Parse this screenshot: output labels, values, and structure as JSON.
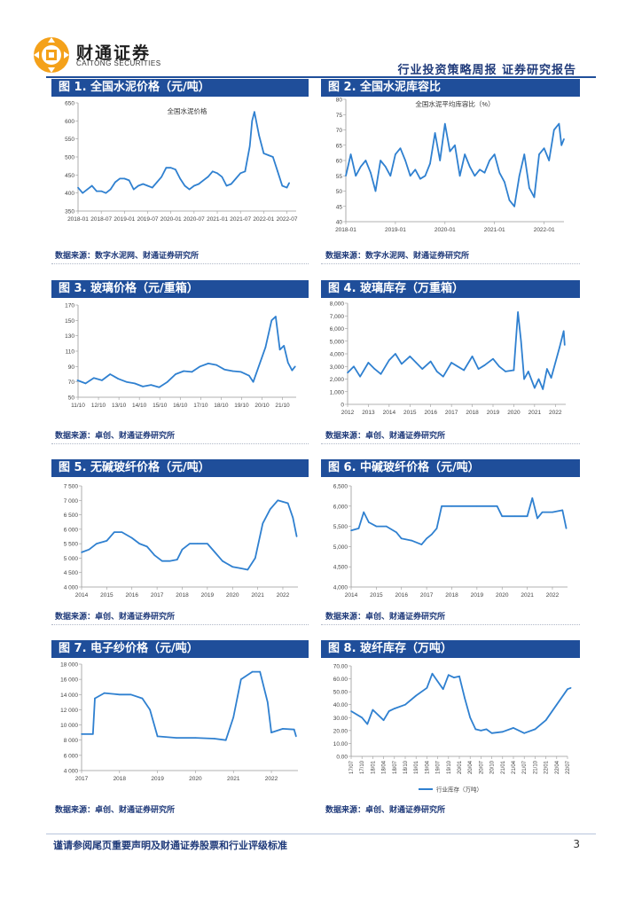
{
  "header": {
    "brand_cn": "财通证券",
    "brand_en": "CAITONG SECURITIES",
    "report_type": "行业投资策略周报   证券研究报告"
  },
  "colors": {
    "accent": "#1f4e9a",
    "line": "#2f80d0"
  },
  "figures": [
    {
      "title": "图 1. 全国水泥价格（元/吨）",
      "source": "数据来源：数字水泥网、财通证券研究所"
    },
    {
      "title": "图 2. 全国水泥库容比",
      "source": "数据来源：数字水泥网、财通证券研究所"
    },
    {
      "title": "图 3. 玻璃价格（元/重箱）",
      "source": "数据来源：卓创、财通证券研究所"
    },
    {
      "title": "图 4. 玻璃库存（万重箱）",
      "source": "数据来源：卓创、财通证券研究所"
    },
    {
      "title": "图 5. 无碱玻纤价格（元/吨）",
      "source": "数据来源：卓创、财通证券研究所"
    },
    {
      "title": "图 6. 中碱玻纤价格（元/吨）",
      "source": "数据来源：卓创、财通证券研究所"
    },
    {
      "title": "图 7. 电子纱价格（元/吨）",
      "source": "数据来源：卓创、财通证券研究所"
    },
    {
      "title": "图 8. 玻纤库存（万吨）",
      "source": "数据来源：卓创、财通证券研究所"
    }
  ],
  "footer": {
    "disclaimer": "谨请参阅尾页重要声明及财通证券股票和行业评级标准",
    "page": "3"
  },
  "chart_data": [
    {
      "id": "c1",
      "type": "line",
      "title": "全国水泥价格",
      "ylim": [
        350,
        650
      ],
      "yticks": [
        "350",
        "400",
        "450",
        "500",
        "550",
        "600",
        "650"
      ],
      "xlim": [
        2018.0,
        2022.7
      ],
      "xticks": [
        {
          "v": 2018.0,
          "label": "2018-01"
        },
        {
          "v": 2018.5,
          "label": "2018-07"
        },
        {
          "v": 2019.0,
          "label": "2019-01"
        },
        {
          "v": 2019.5,
          "label": "2019-07"
        },
        {
          "v": 2020.0,
          "label": "2020-01"
        },
        {
          "v": 2020.5,
          "label": "2020-07"
        },
        {
          "v": 2021.0,
          "label": "2021-01"
        },
        {
          "v": 2021.5,
          "label": "2021-07"
        },
        {
          "v": 2022.0,
          "label": "2022-01"
        },
        {
          "v": 2022.5,
          "label": "2022-07"
        }
      ],
      "x": [
        2018.0,
        2018.1,
        2018.2,
        2018.3,
        2018.4,
        2018.5,
        2018.6,
        2018.7,
        2018.8,
        2018.9,
        2019.0,
        2019.1,
        2019.2,
        2019.3,
        2019.4,
        2019.5,
        2019.6,
        2019.7,
        2019.8,
        2019.9,
        2020.0,
        2020.1,
        2020.2,
        2020.3,
        2020.4,
        2020.5,
        2020.6,
        2020.7,
        2020.8,
        2020.9,
        2021.0,
        2021.1,
        2021.2,
        2021.3,
        2021.4,
        2021.5,
        2021.6,
        2021.7,
        2021.75,
        2021.8,
        2021.9,
        2022.0,
        2022.1,
        2022.2,
        2022.3,
        2022.4,
        2022.5,
        2022.55
      ],
      "y": [
        415,
        400,
        410,
        420,
        405,
        405,
        400,
        410,
        430,
        440,
        440,
        435,
        410,
        420,
        425,
        420,
        415,
        430,
        445,
        470,
        470,
        465,
        440,
        420,
        410,
        420,
        425,
        435,
        445,
        460,
        455,
        445,
        420,
        425,
        440,
        455,
        460,
        530,
        600,
        625,
        560,
        510,
        505,
        500,
        460,
        420,
        415,
        428
      ]
    },
    {
      "id": "c2",
      "type": "line",
      "title": "全国水泥平均库容比（%）",
      "ylim": [
        40,
        80
      ],
      "yticks": [
        "40",
        "45",
        "50",
        "55",
        "60",
        "65",
        "70",
        "75",
        "80"
      ],
      "xlim": [
        2018.0,
        2022.4
      ],
      "xticks": [
        {
          "v": 2018.0,
          "label": "2018-01"
        },
        {
          "v": 2019.0,
          "label": "2019-01"
        },
        {
          "v": 2020.0,
          "label": "2020-01"
        },
        {
          "v": 2021.0,
          "label": "2021-01"
        },
        {
          "v": 2022.0,
          "label": "2022-01"
        }
      ],
      "x": [
        2018.0,
        2018.1,
        2018.2,
        2018.3,
        2018.4,
        2018.5,
        2018.6,
        2018.7,
        2018.8,
        2018.9,
        2019.0,
        2019.1,
        2019.2,
        2019.3,
        2019.4,
        2019.5,
        2019.6,
        2019.7,
        2019.8,
        2019.9,
        2020.0,
        2020.1,
        2020.2,
        2020.3,
        2020.4,
        2020.5,
        2020.6,
        2020.7,
        2020.8,
        2020.9,
        2021.0,
        2021.1,
        2021.2,
        2021.3,
        2021.4,
        2021.5,
        2021.6,
        2021.7,
        2021.8,
        2021.9,
        2022.0,
        2022.1,
        2022.2,
        2022.3,
        2022.35,
        2022.4
      ],
      "y": [
        55,
        62,
        55,
        58,
        60,
        56,
        50,
        60,
        58,
        55,
        62,
        64,
        60,
        55,
        57,
        54,
        55,
        59,
        69,
        60,
        72,
        63,
        65,
        55,
        62,
        58,
        55,
        57,
        56,
        60,
        62,
        56,
        53,
        47,
        45,
        55,
        62,
        51,
        48,
        62,
        64,
        60,
        70,
        72,
        65,
        67
      ]
    },
    {
      "id": "c3",
      "type": "line",
      "title": "玻璃价格",
      "ylim": [
        50,
        170
      ],
      "yticks": [
        "50",
        "70",
        "90",
        "110",
        "130",
        "150",
        "170"
      ],
      "xlim": [
        2011.83,
        2022.5
      ],
      "xticks": [
        {
          "v": 2011.83,
          "label": "11/10"
        },
        {
          "v": 2012.83,
          "label": "12/10"
        },
        {
          "v": 2013.83,
          "label": "13/10"
        },
        {
          "v": 2014.83,
          "label": "14/10"
        },
        {
          "v": 2015.83,
          "label": "15/10"
        },
        {
          "v": 2016.83,
          "label": "16/10"
        },
        {
          "v": 2017.83,
          "label": "17/10"
        },
        {
          "v": 2018.83,
          "label": "18/10"
        },
        {
          "v": 2019.83,
          "label": "19/10"
        },
        {
          "v": 2020.83,
          "label": "20/10"
        },
        {
          "v": 2021.83,
          "label": "21/10"
        }
      ],
      "x": [
        2011.8,
        2012.2,
        2012.6,
        2013.0,
        2013.4,
        2013.8,
        2014.2,
        2014.6,
        2015.0,
        2015.4,
        2015.8,
        2016.2,
        2016.6,
        2017.0,
        2017.4,
        2017.8,
        2018.2,
        2018.6,
        2019.0,
        2019.4,
        2019.8,
        2020.2,
        2020.4,
        2020.8,
        2021.0,
        2021.3,
        2021.5,
        2021.7,
        2021.9,
        2022.1,
        2022.3,
        2022.45
      ],
      "y": [
        72,
        68,
        75,
        72,
        80,
        74,
        70,
        68,
        64,
        66,
        63,
        70,
        80,
        84,
        83,
        90,
        94,
        92,
        86,
        84,
        83,
        78,
        70,
        100,
        115,
        150,
        155,
        112,
        117,
        95,
        85,
        90
      ]
    },
    {
      "id": "c4",
      "type": "line",
      "title": "玻璃库存",
      "ylim": [
        0,
        8000
      ],
      "yticks": [
        "0",
        "1,000",
        "2,000",
        "3,000",
        "4,000",
        "5,000",
        "6,000",
        "7,000",
        "8,000"
      ],
      "xlim": [
        2012.0,
        2022.5
      ],
      "xticks": [
        {
          "v": 2012,
          "label": "2012"
        },
        {
          "v": 2013,
          "label": "2013"
        },
        {
          "v": 2014,
          "label": "2014"
        },
        {
          "v": 2015,
          "label": "2015"
        },
        {
          "v": 2016,
          "label": "2016"
        },
        {
          "v": 2017,
          "label": "2017"
        },
        {
          "v": 2018,
          "label": "2018"
        },
        {
          "v": 2019,
          "label": "2019"
        },
        {
          "v": 2020,
          "label": "2020"
        },
        {
          "v": 2021,
          "label": "2021"
        },
        {
          "v": 2022,
          "label": "2022"
        }
      ],
      "x": [
        2012.0,
        2012.3,
        2012.6,
        2013.0,
        2013.3,
        2013.6,
        2014.0,
        2014.3,
        2014.6,
        2015.0,
        2015.3,
        2015.6,
        2016.0,
        2016.3,
        2016.6,
        2017.0,
        2017.3,
        2017.6,
        2018.0,
        2018.3,
        2018.6,
        2019.0,
        2019.3,
        2019.6,
        2020.0,
        2020.2,
        2020.35,
        2020.5,
        2020.7,
        2021.0,
        2021.2,
        2021.4,
        2021.6,
        2021.8,
        2022.0,
        2022.2,
        2022.4,
        2022.45
      ],
      "y": [
        2500,
        3000,
        2200,
        3300,
        2800,
        2400,
        3500,
        4000,
        3200,
        3800,
        3300,
        2800,
        3400,
        2600,
        2200,
        3300,
        3000,
        2700,
        3800,
        2800,
        3100,
        3600,
        3000,
        2600,
        2700,
        7300,
        5000,
        2000,
        2600,
        1300,
        2000,
        1200,
        2800,
        2100,
        3300,
        4500,
        5800,
        4700
      ]
    },
    {
      "id": "c5",
      "type": "line",
      "title": "无碱玻纤价格",
      "ylim": [
        4000,
        7500
      ],
      "yticks": [
        "4 000",
        "4 500",
        "5 000",
        "5 500",
        "6 000",
        "6 500",
        "7 000",
        "7 500"
      ],
      "xlim": [
        2014.0,
        2022.6
      ],
      "xticks": [
        {
          "v": 2014,
          "label": "2014"
        },
        {
          "v": 2015,
          "label": "2015"
        },
        {
          "v": 2016,
          "label": "2016"
        },
        {
          "v": 2017,
          "label": "2017"
        },
        {
          "v": 2018,
          "label": "2018"
        },
        {
          "v": 2019,
          "label": "2019"
        },
        {
          "v": 2020,
          "label": "2020"
        },
        {
          "v": 2021,
          "label": "2021"
        },
        {
          "v": 2022,
          "label": "2022"
        }
      ],
      "x": [
        2014.0,
        2014.3,
        2014.6,
        2015.0,
        2015.3,
        2015.6,
        2016.0,
        2016.3,
        2016.6,
        2016.9,
        2017.2,
        2017.5,
        2017.8,
        2018.0,
        2018.3,
        2018.6,
        2019.0,
        2019.3,
        2019.6,
        2020.0,
        2020.3,
        2020.6,
        2020.9,
        2021.2,
        2021.5,
        2021.8,
        2022.0,
        2022.2,
        2022.4,
        2022.55
      ],
      "y": [
        5200,
        5300,
        5500,
        5600,
        5900,
        5900,
        5700,
        5500,
        5400,
        5100,
        4900,
        4900,
        4950,
        5300,
        5500,
        5500,
        5500,
        5200,
        4900,
        4700,
        4650,
        4600,
        5000,
        6200,
        6700,
        7000,
        6950,
        6900,
        6400,
        5750
      ]
    },
    {
      "id": "c6",
      "type": "line",
      "title": "中碱玻纤价格",
      "ylim": [
        4000,
        6500
      ],
      "yticks": [
        "4,000",
        "4,500",
        "5,000",
        "5,500",
        "6,000",
        "6,500"
      ],
      "xlim": [
        2014.0,
        2022.6
      ],
      "xticks": [
        {
          "v": 2014,
          "label": "2014"
        },
        {
          "v": 2015,
          "label": "2015"
        },
        {
          "v": 2016,
          "label": "2016"
        },
        {
          "v": 2017,
          "label": "2017"
        },
        {
          "v": 2018,
          "label": "2018"
        },
        {
          "v": 2019,
          "label": "2019"
        },
        {
          "v": 2020,
          "label": "2020"
        },
        {
          "v": 2021,
          "label": "2021"
        },
        {
          "v": 2022,
          "label": "2022"
        }
      ],
      "x": [
        2014.0,
        2014.3,
        2014.5,
        2014.7,
        2015.0,
        2015.4,
        2015.8,
        2016.0,
        2016.4,
        2016.8,
        2017.0,
        2017.2,
        2017.4,
        2017.6,
        2018.0,
        2019.0,
        2019.8,
        2020.0,
        2020.5,
        2021.0,
        2021.2,
        2021.4,
        2021.6,
        2022.0,
        2022.4,
        2022.55
      ],
      "y": [
        5400,
        5450,
        5850,
        5600,
        5500,
        5500,
        5350,
        5200,
        5150,
        5050,
        5200,
        5300,
        5450,
        6000,
        6000,
        6000,
        6000,
        5750,
        5750,
        5750,
        6200,
        5700,
        5850,
        5850,
        5900,
        5450
      ]
    },
    {
      "id": "c7",
      "type": "line",
      "title": "电子纱价格",
      "ylim": [
        4000,
        18000
      ],
      "yticks": [
        "4 000",
        "6 000",
        "8 000",
        "10 000",
        "12 000",
        "14 000",
        "16 000",
        "18 000"
      ],
      "xlim": [
        2017.0,
        2022.7
      ],
      "xticks": [
        {
          "v": 2017,
          "label": "2017"
        },
        {
          "v": 2018,
          "label": "2018"
        },
        {
          "v": 2019,
          "label": "2019"
        },
        {
          "v": 2020,
          "label": "2020"
        },
        {
          "v": 2021,
          "label": "2021"
        },
        {
          "v": 2022,
          "label": "2022"
        }
      ],
      "x": [
        2017.0,
        2017.3,
        2017.35,
        2017.6,
        2018.0,
        2018.3,
        2018.6,
        2018.8,
        2019.0,
        2019.5,
        2020.0,
        2020.5,
        2020.8,
        2021.0,
        2021.2,
        2021.5,
        2021.7,
        2021.9,
        2022.0,
        2022.3,
        2022.6,
        2022.65
      ],
      "y": [
        8800,
        8800,
        13500,
        14200,
        14000,
        14000,
        13500,
        12000,
        8500,
        8300,
        8300,
        8200,
        8000,
        11000,
        16000,
        17000,
        17000,
        13000,
        9000,
        9500,
        9400,
        8500
      ]
    },
    {
      "id": "c8",
      "type": "line",
      "title": "玻纤库存",
      "ylim": [
        0,
        70
      ],
      "yticks": [
        "0.00",
        "10.00",
        "20.00",
        "30.00",
        "40.00",
        "50.00",
        "60.00",
        "70.00"
      ],
      "xlim": [
        0,
        20
      ],
      "xticks": [
        {
          "v": 0,
          "label": "17/07"
        },
        {
          "v": 1,
          "label": "17/10"
        },
        {
          "v": 2,
          "label": "18/01"
        },
        {
          "v": 3,
          "label": "18/04"
        },
        {
          "v": 4,
          "label": "18/07"
        },
        {
          "v": 5,
          "label": "18/10"
        },
        {
          "v": 6,
          "label": "19/01"
        },
        {
          "v": 7,
          "label": "19/04"
        },
        {
          "v": 8,
          "label": "19/07"
        },
        {
          "v": 9,
          "label": "19/10"
        },
        {
          "v": 10,
          "label": "20/01"
        },
        {
          "v": 11,
          "label": "20/04"
        },
        {
          "v": 12,
          "label": "20/07"
        },
        {
          "v": 13,
          "label": "20/10"
        },
        {
          "v": 14,
          "label": "21/01"
        },
        {
          "v": 15,
          "label": "21/04"
        },
        {
          "v": 16,
          "label": "21/07"
        },
        {
          "v": 17,
          "label": "21/10"
        },
        {
          "v": 18,
          "label": "22/01"
        },
        {
          "v": 19,
          "label": "22/04"
        },
        {
          "v": 20,
          "label": "22/07"
        }
      ],
      "x": [
        0,
        1,
        1.5,
        2,
        3,
        3.5,
        4,
        5,
        6,
        7,
        7.5,
        8,
        8.5,
        9,
        9.5,
        10,
        10.5,
        11,
        11.5,
        12,
        12.5,
        13,
        14,
        15,
        16,
        17,
        18,
        19,
        20,
        20.3
      ],
      "y": [
        35,
        30,
        25,
        36,
        28,
        35,
        37,
        40,
        47,
        53,
        64,
        58,
        52,
        63,
        61,
        62,
        45,
        30,
        21,
        20,
        21,
        18,
        19,
        22,
        18,
        21,
        28,
        40,
        52,
        53
      ],
      "legend": "行业库存（万吨）"
    }
  ]
}
